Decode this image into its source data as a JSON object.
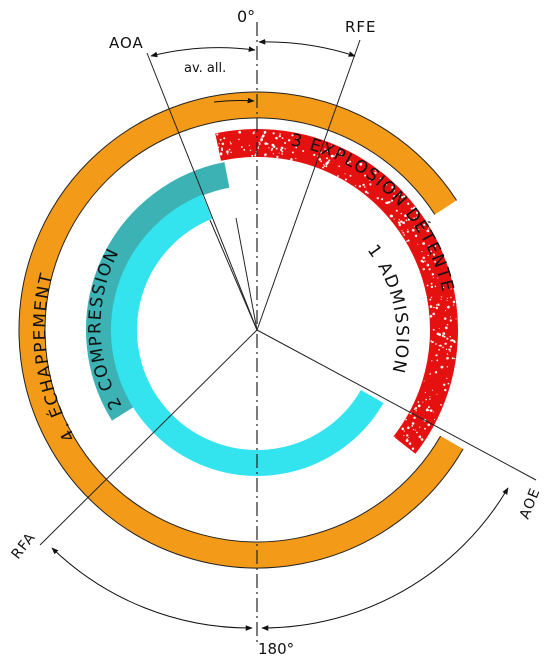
{
  "angles": {
    "top": "0°",
    "bottom": "180°"
  },
  "markers": {
    "aoa": "AOA",
    "rfe": "RFE",
    "rfa": "RFA",
    "aoe": "AOE",
    "advance": "av. all."
  },
  "phases": [
    {
      "number": "1",
      "name": "ADMISSION",
      "color": "#33e3ee"
    },
    {
      "number": "2",
      "name": "COMPRESSION",
      "color": "#3cb2b4"
    },
    {
      "number": "3",
      "name": "EXPLOSION DÉTENTE",
      "color": "#e51010"
    },
    {
      "number": "4",
      "name": "ÉCHAPPEMENT",
      "color": "#f39a19"
    }
  ],
  "phase_labels": {
    "admission": "1   ADMISSION",
    "compression": "2   COMPRESSION",
    "explosion": "3 EXPLOSION DÉTENTE",
    "echappement": "4. ÉCHAPPEMENT"
  }
}
